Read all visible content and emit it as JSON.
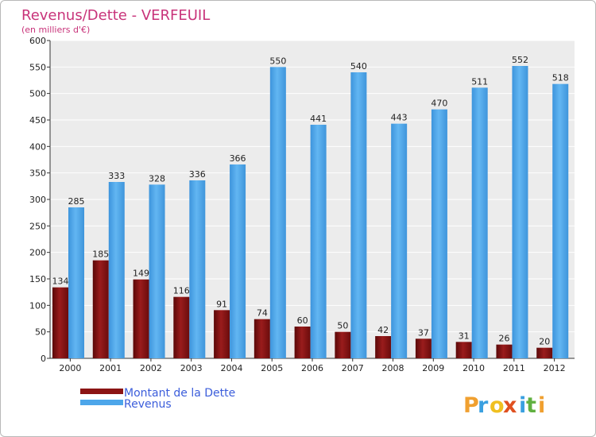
{
  "chart_data": {
    "type": "bar",
    "title": "Revenus/Dette - VERFEUIL",
    "subtitle": "(en milliers d'€)",
    "categories": [
      "2000",
      "2001",
      "2002",
      "2003",
      "2004",
      "2005",
      "2006",
      "2007",
      "2008",
      "2009",
      "2010",
      "2011",
      "2012"
    ],
    "series": [
      {
        "name": "Montant de la Dette",
        "color": "#8b1414",
        "values": [
          134,
          185,
          149,
          116,
          91,
          74,
          60,
          50,
          42,
          37,
          31,
          26,
          20
        ]
      },
      {
        "name": "Revenus",
        "color": "#4da6ea",
        "values": [
          285,
          333,
          328,
          336,
          366,
          550,
          441,
          540,
          443,
          470,
          511,
          552,
          518
        ]
      }
    ],
    "ylim": [
      0,
      600
    ],
    "yticks": [
      0,
      50,
      100,
      150,
      200,
      250,
      300,
      350,
      400,
      450,
      500,
      550,
      600
    ],
    "grid": true,
    "legend": "bottom-left"
  },
  "logo": {
    "letters": [
      "P",
      "r",
      "o",
      "x",
      "i",
      "t",
      "i"
    ],
    "colors": [
      "#f0a030",
      "#3aa0e0",
      "#f0c020",
      "#e05020",
      "#3aa0e0",
      "#60b040",
      "#f0a030"
    ]
  }
}
